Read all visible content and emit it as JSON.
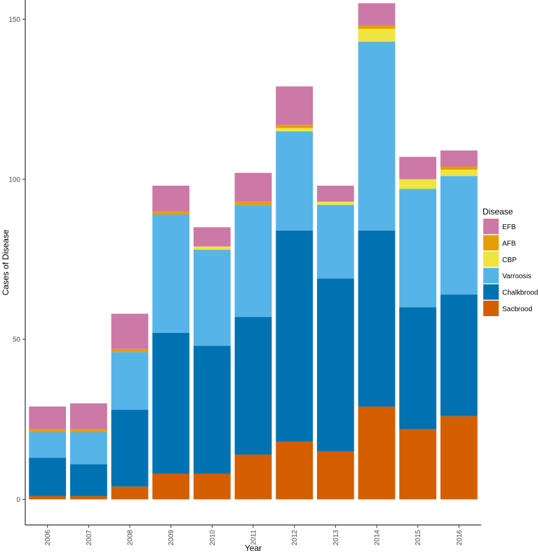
{
  "chart_data": {
    "type": "bar",
    "stacked": true,
    "title": "",
    "xlabel": "Year",
    "ylabel": "Cases of Disease",
    "ylim": [
      -8,
      156
    ],
    "yticks": [
      0,
      50,
      100,
      150
    ],
    "categories": [
      "2006",
      "2007",
      "2008",
      "2009",
      "2010",
      "2011",
      "2012",
      "2013",
      "2014",
      "2015",
      "2016"
    ],
    "series": [
      {
        "name": "Sacbrood",
        "color": "#D55E00",
        "values": [
          1,
          1,
          4,
          8,
          8,
          14,
          18,
          15,
          29,
          22,
          26
        ]
      },
      {
        "name": "Chalkbrood",
        "color": "#0072B2",
        "values": [
          12,
          10,
          24,
          44,
          40,
          43,
          66,
          54,
          55,
          38,
          38
        ]
      },
      {
        "name": "Varroosis",
        "color": "#56B4E9",
        "values": [
          8,
          10,
          18,
          37,
          30,
          35,
          31,
          23,
          59,
          37,
          37
        ]
      },
      {
        "name": "CBP",
        "color": "#F0E442",
        "values": [
          0,
          0,
          0,
          0,
          1,
          0,
          1,
          1,
          4,
          3,
          2
        ]
      },
      {
        "name": "AFB",
        "color": "#E69F00",
        "values": [
          1,
          1,
          1,
          1,
          0,
          1,
          1,
          0,
          1,
          0,
          1
        ]
      },
      {
        "name": "EFB",
        "color": "#CC79A7",
        "values": [
          7,
          8,
          11,
          8,
          6,
          9,
          12,
          5,
          7,
          7,
          5
        ]
      }
    ],
    "legend": {
      "title": "Disease",
      "placement": "right",
      "order": [
        "EFB",
        "AFB",
        "CBP",
        "Varroosis",
        "Chalkbrood",
        "Sacbrood"
      ]
    },
    "grid": false,
    "x_tick_rotation": "vertical"
  }
}
